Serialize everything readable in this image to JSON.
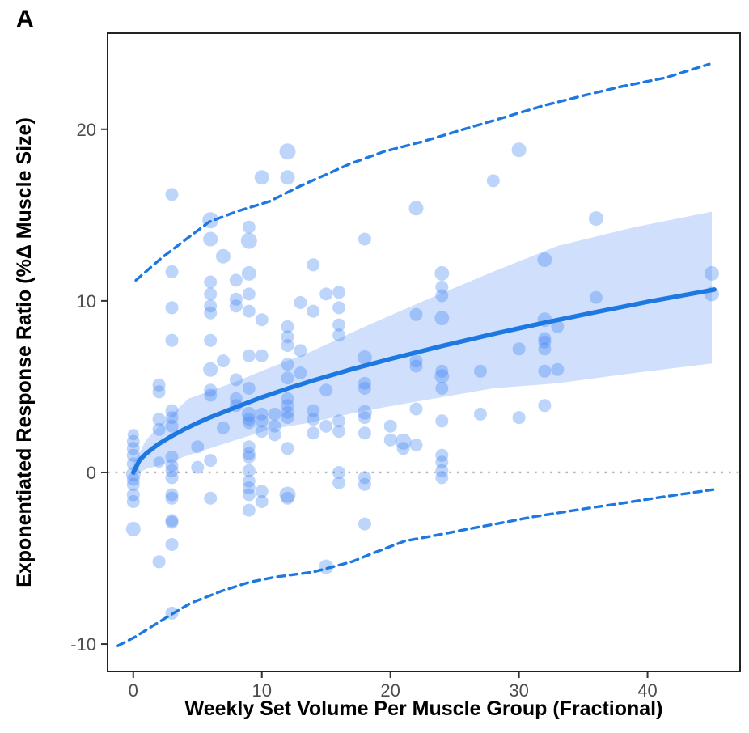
{
  "figure": {
    "panel_label": "A"
  },
  "chart_data": {
    "type": "scatter",
    "title": "",
    "xlabel": "Weekly Set Volume Per Muscle Group (Fractional)",
    "ylabel": "Exponentiated Response Ratio (%Δ Muscle Size)",
    "xlim": [
      -2,
      47.2
    ],
    "ylim": [
      -11.6,
      25.6
    ],
    "x_ticks": [
      0,
      10,
      20,
      30,
      40
    ],
    "y_ticks": [
      -10,
      0,
      10,
      20
    ],
    "grid": false,
    "legend": "none",
    "colors": {
      "points": "#4285f4",
      "fit_line": "#1d78e2",
      "ribbon": "#4285f4",
      "prediction_line": "#1d78e2",
      "zero_line": "#b5b5b5",
      "tick_text": "#4d4d4d",
      "axis_title": "#000000",
      "border": "#222222"
    },
    "series": [
      {
        "name": "observations",
        "type": "points",
        "points": [
          [
            0,
            2.2,
            7
          ],
          [
            0,
            1.8,
            8
          ],
          [
            0,
            1.4,
            8
          ],
          [
            0,
            1.0,
            8
          ],
          [
            0,
            0.5,
            8
          ],
          [
            0,
            -0.1,
            9
          ],
          [
            0,
            -0.4,
            8
          ],
          [
            0,
            -0.7,
            8
          ],
          [
            0,
            -1.3,
            8
          ],
          [
            0,
            -1.7,
            8
          ],
          [
            0,
            -3.3,
            9
          ],
          [
            2,
            5.1,
            8
          ],
          [
            2,
            4.7,
            8
          ],
          [
            2,
            3.1,
            8
          ],
          [
            2,
            2.5,
            8
          ],
          [
            2,
            0.6,
            7
          ],
          [
            2,
            -5.2,
            8
          ],
          [
            3,
            16.2,
            8
          ],
          [
            3,
            11.7,
            8
          ],
          [
            3,
            9.6,
            8
          ],
          [
            3,
            7.7,
            8
          ],
          [
            3,
            3.6,
            8
          ],
          [
            3,
            3.2,
            8
          ],
          [
            3,
            2.7,
            8
          ],
          [
            3,
            0.9,
            8
          ],
          [
            3,
            0.4,
            8
          ],
          [
            3,
            0.1,
            8
          ],
          [
            3,
            -0.3,
            8
          ],
          [
            3,
            -1.3,
            8
          ],
          [
            3,
            -1.5,
            8
          ],
          [
            3,
            -2.8,
            8
          ],
          [
            3,
            -2.9,
            8
          ],
          [
            3,
            -4.2,
            8
          ],
          [
            3,
            -8.2,
            8
          ],
          [
            5,
            1.5,
            8
          ],
          [
            5,
            0.3,
            8
          ],
          [
            6,
            14.7,
            10
          ],
          [
            6,
            13.6,
            9
          ],
          [
            6,
            11.1,
            8
          ],
          [
            6,
            10.4,
            8
          ],
          [
            6,
            9.7,
            8
          ],
          [
            6,
            9.3,
            8
          ],
          [
            6,
            7.7,
            8
          ],
          [
            6,
            6.0,
            9
          ],
          [
            6,
            4.8,
            8
          ],
          [
            6,
            4.5,
            8
          ],
          [
            6,
            0.7,
            8
          ],
          [
            6,
            -1.5,
            8
          ],
          [
            7,
            12.6,
            9
          ],
          [
            7,
            6.5,
            8
          ],
          [
            7,
            2.6,
            8
          ],
          [
            8,
            11.2,
            8
          ],
          [
            8,
            10.1,
            8
          ],
          [
            8,
            9.7,
            8
          ],
          [
            8,
            5.4,
            8
          ],
          [
            8,
            4.3,
            8
          ],
          [
            8,
            3.9,
            8
          ],
          [
            9,
            14.3,
            8
          ],
          [
            9,
            13.5,
            10
          ],
          [
            9,
            11.6,
            9
          ],
          [
            9,
            10.4,
            8
          ],
          [
            9,
            9.4,
            8
          ],
          [
            9,
            6.8,
            8
          ],
          [
            9,
            4.9,
            8
          ],
          [
            9,
            3.4,
            9
          ],
          [
            9,
            3.1,
            8
          ],
          [
            9,
            2.9,
            8
          ],
          [
            9,
            1.5,
            8
          ],
          [
            9,
            1.1,
            8
          ],
          [
            9,
            0.9,
            8
          ],
          [
            9,
            0.1,
            8
          ],
          [
            9,
            -0.5,
            8
          ],
          [
            9,
            -0.9,
            8
          ],
          [
            9,
            -1.3,
            8
          ],
          [
            9,
            -2.2,
            8
          ],
          [
            10,
            17.2,
            9
          ],
          [
            10,
            8.9,
            8
          ],
          [
            10,
            6.8,
            8
          ],
          [
            10,
            3.4,
            8
          ],
          [
            10,
            3.0,
            8
          ],
          [
            10,
            2.4,
            8
          ],
          [
            10,
            -1.1,
            8
          ],
          [
            10,
            -1.7,
            8
          ],
          [
            11,
            3.4,
            8
          ],
          [
            11,
            2.7,
            8
          ],
          [
            11,
            2.2,
            8
          ],
          [
            12,
            18.7,
            10
          ],
          [
            12,
            17.2,
            9
          ],
          [
            12,
            8.5,
            8
          ],
          [
            12,
            7.9,
            8
          ],
          [
            12,
            7.4,
            8
          ],
          [
            12,
            6.3,
            8
          ],
          [
            12,
            5.5,
            8
          ],
          [
            12,
            4.3,
            8
          ],
          [
            12,
            3.9,
            8
          ],
          [
            12,
            3.5,
            8
          ],
          [
            12,
            3.2,
            8
          ],
          [
            12,
            1.4,
            8
          ],
          [
            12,
            -1.3,
            10
          ],
          [
            12,
            -1.5,
            8
          ],
          [
            13,
            9.9,
            8
          ],
          [
            13,
            7.1,
            8
          ],
          [
            13,
            5.8,
            8
          ],
          [
            14,
            12.1,
            8
          ],
          [
            14,
            9.4,
            8
          ],
          [
            14,
            3.6,
            8
          ],
          [
            14,
            3.1,
            8
          ],
          [
            14,
            2.3,
            8
          ],
          [
            15,
            10.4,
            8
          ],
          [
            15,
            4.8,
            8
          ],
          [
            15,
            2.7,
            8
          ],
          [
            15,
            -5.5,
            9
          ],
          [
            16,
            10.5,
            8
          ],
          [
            16,
            9.6,
            8
          ],
          [
            16,
            8.6,
            8
          ],
          [
            16,
            8.0,
            8
          ],
          [
            16,
            3.0,
            8
          ],
          [
            16,
            2.4,
            8
          ],
          [
            16,
            0.0,
            8
          ],
          [
            16,
            -0.6,
            8
          ],
          [
            18,
            13.6,
            8
          ],
          [
            18,
            6.7,
            9
          ],
          [
            18,
            5.2,
            8
          ],
          [
            18,
            4.9,
            8
          ],
          [
            18,
            3.5,
            9
          ],
          [
            18,
            3.2,
            8
          ],
          [
            18,
            2.3,
            8
          ],
          [
            18,
            -0.3,
            8
          ],
          [
            18,
            -0.7,
            8
          ],
          [
            18,
            -3.0,
            8
          ],
          [
            20,
            2.7,
            8
          ],
          [
            20,
            1.9,
            8
          ],
          [
            21,
            1.8,
            10
          ],
          [
            21,
            1.4,
            8
          ],
          [
            22,
            15.4,
            9
          ],
          [
            22,
            9.2,
            8
          ],
          [
            22,
            6.5,
            8
          ],
          [
            22,
            6.2,
            8
          ],
          [
            22,
            3.7,
            8
          ],
          [
            22,
            1.6,
            8
          ],
          [
            24,
            11.6,
            9
          ],
          [
            24,
            10.8,
            8
          ],
          [
            24,
            10.3,
            8
          ],
          [
            24,
            9.0,
            9
          ],
          [
            24,
            5.9,
            8
          ],
          [
            24,
            5.6,
            9
          ],
          [
            24,
            4.9,
            8
          ],
          [
            24,
            3.0,
            8
          ],
          [
            24,
            1.0,
            8
          ],
          [
            24,
            0.6,
            8
          ],
          [
            24,
            0.1,
            8
          ],
          [
            24,
            -0.3,
            8
          ],
          [
            28,
            17.0,
            8
          ],
          [
            27,
            5.9,
            8
          ],
          [
            27,
            3.4,
            8
          ],
          [
            30,
            18.8,
            9
          ],
          [
            30,
            7.2,
            8
          ],
          [
            30,
            3.2,
            8
          ],
          [
            32,
            12.4,
            9
          ],
          [
            32,
            8.9,
            9
          ],
          [
            32,
            7.8,
            8
          ],
          [
            32,
            7.6,
            8
          ],
          [
            32,
            7.2,
            8
          ],
          [
            32,
            5.9,
            8
          ],
          [
            32,
            3.9,
            8
          ],
          [
            33,
            8.5,
            8
          ],
          [
            33,
            6.0,
            8
          ],
          [
            36,
            14.8,
            9
          ],
          [
            36,
            10.2,
            8
          ],
          [
            45,
            11.6,
            9
          ],
          [
            45,
            10.4,
            9
          ]
        ]
      },
      {
        "name": "confidence-band",
        "type": "ribbon",
        "x": [
          0,
          1,
          2,
          4.3,
          8,
          10.6,
          13.7,
          18,
          22.6,
          28,
          33,
          39,
          45
        ],
        "upper": [
          0.5,
          1.9,
          2.7,
          4.3,
          5.3,
          6.1,
          7.0,
          8.5,
          10.0,
          11.7,
          13.2,
          14.3,
          15.2
        ],
        "lower": [
          -0.2,
          0.2,
          0.4,
          1.0,
          1.9,
          2.5,
          2.9,
          3.6,
          4.2,
          4.9,
          5.2,
          5.8,
          6.35
        ]
      },
      {
        "name": "model-fit",
        "type": "line",
        "x": [
          0,
          0.5,
          1,
          1.5,
          2,
          3,
          4,
          5,
          6,
          8,
          10,
          12,
          14,
          17,
          20,
          24,
          28,
          32,
          36,
          40,
          45.2
        ],
        "y": [
          0,
          0.73,
          1.1,
          1.4,
          1.67,
          2.13,
          2.53,
          2.89,
          3.22,
          3.81,
          4.38,
          4.89,
          5.36,
          6.02,
          6.62,
          7.37,
          8.07,
          8.73,
          9.35,
          9.94,
          10.66
        ]
      },
      {
        "name": "upper-prediction-interval",
        "type": "dashed-line",
        "x": [
          0.2,
          2.2,
          4.3,
          5.9,
          8,
          10.6,
          13,
          16.9,
          19.5,
          22.6,
          25.7,
          28.9,
          32,
          35.2,
          38,
          41.4,
          44.8
        ],
        "y": [
          11.2,
          12.5,
          13.7,
          14.6,
          15.2,
          15.8,
          16.7,
          18.0,
          18.7,
          19.3,
          20.0,
          20.7,
          21.4,
          22.0,
          22.5,
          23.0,
          23.8
        ]
      },
      {
        "name": "lower-prediction-interval",
        "type": "dashed-line",
        "x": [
          -1.2,
          0.1,
          2.9,
          4.5,
          6.9,
          9,
          11,
          14,
          17,
          19,
          21.1,
          24,
          26,
          28.9,
          31,
          35.2,
          38,
          41.4,
          45.1
        ],
        "y": [
          -10.1,
          -9.6,
          -8.3,
          -7.6,
          -6.9,
          -6.4,
          -6.1,
          -5.8,
          -5.2,
          -4.6,
          -4.0,
          -3.6,
          -3.3,
          -2.9,
          -2.6,
          -2.1,
          -1.8,
          -1.4,
          -1.0
        ]
      },
      {
        "name": "zero-reference",
        "type": "dotted-hline",
        "y": 0
      }
    ]
  }
}
